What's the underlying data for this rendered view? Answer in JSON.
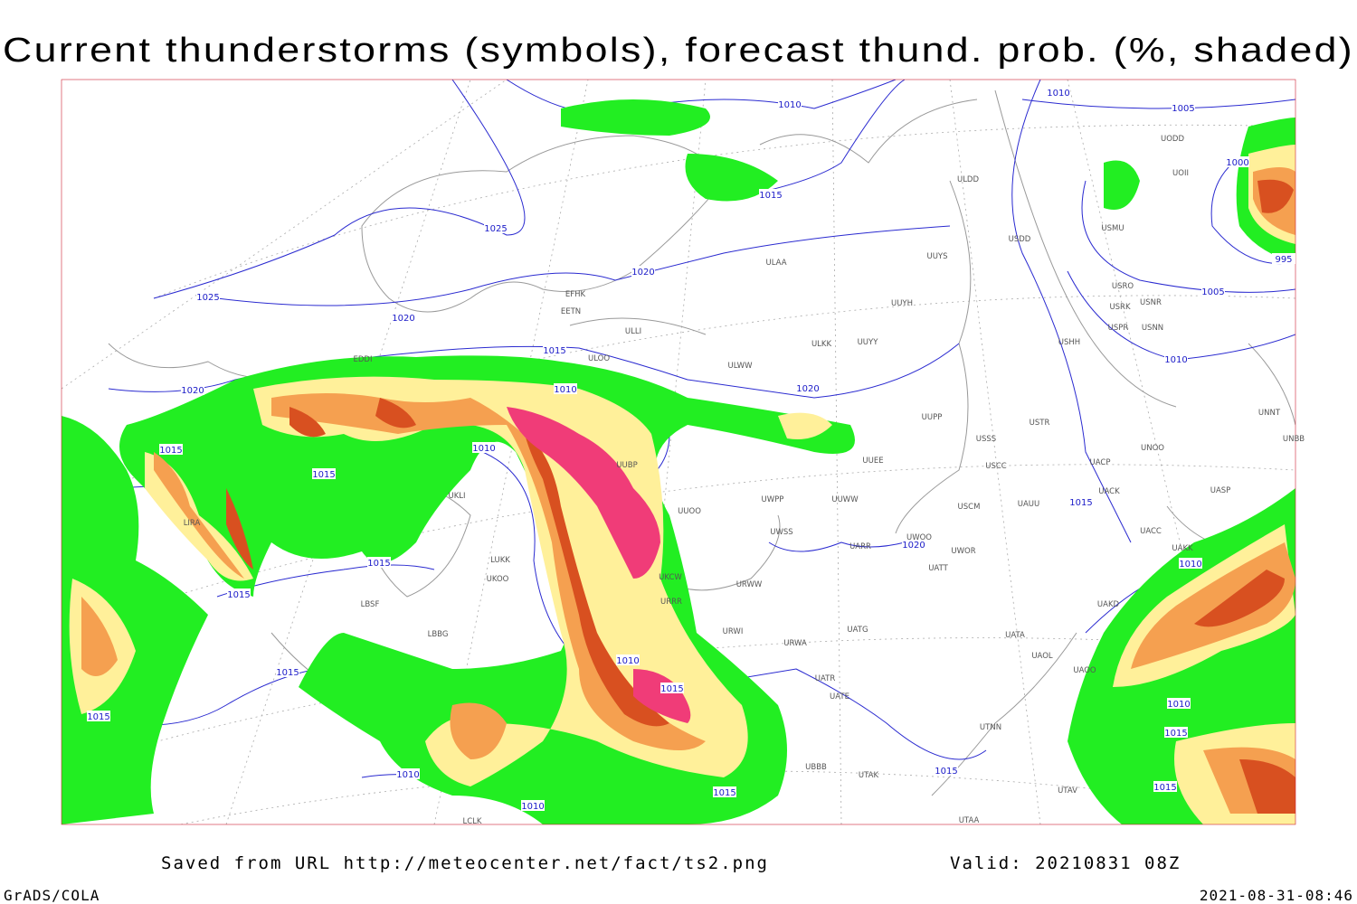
{
  "title": "Current thunderstorms (symbols), forecast thund. prob. (%, shaded)",
  "footer": {
    "source": "Saved from URL http://meteocenter.net/fact/ts2.png",
    "valid": "Valid: 20210831 08Z",
    "software": "GrADS/COLA",
    "timestamp": "2021-08-31-08:46"
  },
  "isobar_labels": [
    "1010",
    "1005",
    "1010",
    "1015",
    "1025",
    "1020",
    "1025",
    "1020",
    "1015",
    "1020",
    "1010",
    "1020",
    "1015",
    "1010",
    "1015",
    "1015",
    "1020",
    "1015",
    "1015",
    "1010",
    "1000",
    "995",
    "1005",
    "1010",
    "1010",
    "1015",
    "1015",
    "1015",
    "1010",
    "1015",
    "1010",
    "1010",
    "1015",
    "1015",
    "1015"
  ],
  "station_codes": [
    "ULDD",
    "USDD",
    "USMU",
    "UODD",
    "UOII",
    "ULAA",
    "UUYS",
    "USRO",
    "USRK",
    "USNR",
    "USPR",
    "USNN",
    "UUYH",
    "EFHK",
    "EETN",
    "ULLI",
    "ULKK",
    "UUYY",
    "USHH",
    "ULOO",
    "ULWW",
    "EDDI",
    "UUPP",
    "USSS",
    "USTR",
    "UNNT",
    "UNBB",
    "UNOO",
    "UACP",
    "USCC",
    "UUBP",
    "UUEE",
    "UUWW",
    "UWPP",
    "UACK",
    "UASP",
    "USCM",
    "UAUU",
    "UUOO",
    "UWSS",
    "UACC",
    "UWOO",
    "UWOR",
    "UARR",
    "UAKK",
    "LUKK",
    "UKOO",
    "URWW",
    "UATT",
    "UKCW",
    "URRR",
    "UAKD",
    "LBSF",
    "URWI",
    "UATG",
    "LBBG",
    "URWA",
    "UATA",
    "UAOL",
    "UAOO",
    "UATR",
    "UATE",
    "UBBB",
    "UTAK",
    "UTAV",
    "UTNN",
    "UTAA",
    "LIRA",
    "UKLI",
    "LCLK"
  ]
}
